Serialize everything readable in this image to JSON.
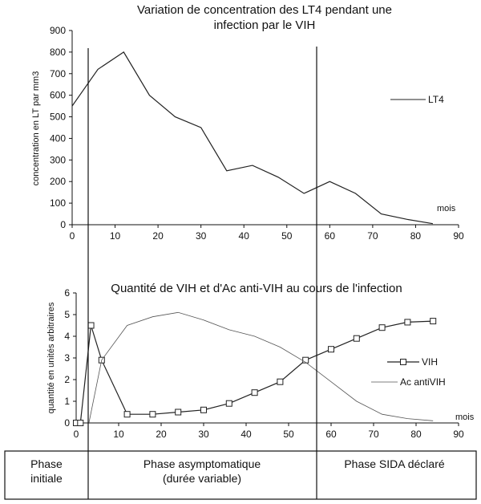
{
  "chart_data": [
    {
      "type": "line",
      "title": "Variation de concentration des LT4 pendant une infection par le VIH",
      "title_lines": [
        "Variation de concentration des LT4 pendant une",
        "infection par le VIH"
      ],
      "ylabel": "concentration en LT par mm3",
      "xlabel": "mois",
      "xlim": [
        0,
        90
      ],
      "ylim": [
        0,
        900
      ],
      "xticks": [
        0,
        10,
        20,
        30,
        40,
        50,
        60,
        70,
        80,
        90
      ],
      "yticks": [
        0,
        100,
        200,
        300,
        400,
        500,
        600,
        700,
        800,
        900
      ],
      "grid": false,
      "legend_position": "right",
      "series": [
        {
          "name": "LT4",
          "x": [
            0,
            6,
            12,
            18,
            24,
            30,
            36,
            42,
            48,
            54,
            60,
            66,
            72,
            78,
            84
          ],
          "y": [
            550,
            720,
            800,
            600,
            500,
            450,
            250,
            275,
            220,
            145,
            200,
            145,
            50,
            25,
            5
          ]
        }
      ]
    },
    {
      "type": "line",
      "title": "Quantité de VIH et d'Ac anti-VIH au cours de l'infection",
      "ylabel": "quantité en unités arbitraires",
      "xlabel": "mois",
      "xlim": [
        0,
        90
      ],
      "ylim": [
        0,
        6
      ],
      "xticks": [
        0,
        10,
        20,
        30,
        40,
        50,
        60,
        70,
        80,
        90
      ],
      "yticks": [
        0,
        1,
        2,
        3,
        4,
        5,
        6
      ],
      "grid": false,
      "legend_position": "right",
      "series": [
        {
          "name": "VIH",
          "marker": "square",
          "x": [
            0,
            1,
            3.5,
            6,
            12,
            18,
            24,
            30,
            36,
            42,
            48,
            54,
            60,
            66,
            72,
            78,
            84
          ],
          "y": [
            0,
            0,
            4.5,
            2.9,
            0.4,
            0.4,
            0.5,
            0.6,
            0.9,
            1.4,
            1.9,
            2.9,
            3.4,
            3.9,
            4.4,
            4.65,
            4.7
          ]
        },
        {
          "name": "Ac antiVIH",
          "x": [
            3,
            6,
            12,
            18,
            24,
            30,
            36,
            42,
            48,
            54,
            60,
            66,
            72,
            78,
            84
          ],
          "y": [
            0,
            2.9,
            4.5,
            4.9,
            5.1,
            4.75,
            4.3,
            4.0,
            3.5,
            2.8,
            1.9,
            1.0,
            0.4,
            0.2,
            0.1
          ]
        }
      ]
    }
  ],
  "phases": {
    "initiale": [
      "Phase",
      "initiale"
    ],
    "asymptomatique": [
      "Phase asymptomatique",
      "(durée variable)"
    ],
    "sida": [
      "Phase SIDA déclaré"
    ]
  }
}
